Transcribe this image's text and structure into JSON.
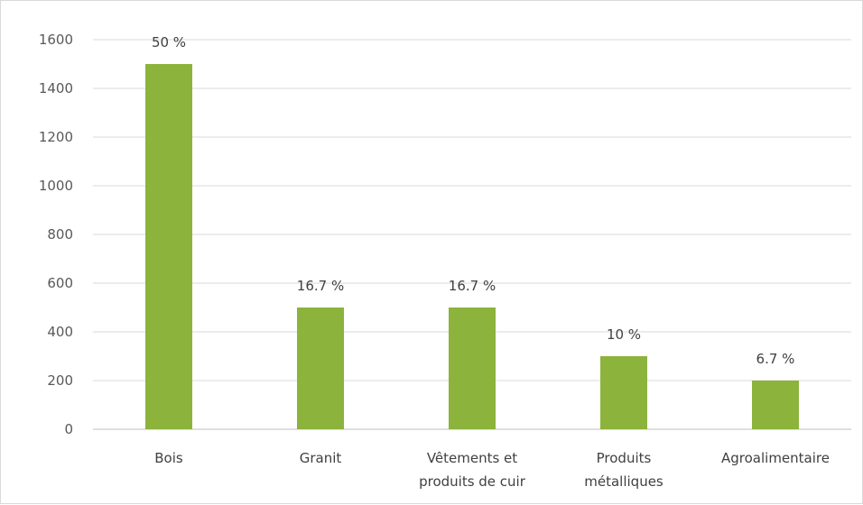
{
  "chart_data": {
    "type": "bar",
    "title": "",
    "xlabel": "",
    "ylabel": "",
    "ylim": [
      0,
      1600
    ],
    "yticks": [
      0,
      200,
      400,
      600,
      800,
      1000,
      1200,
      1400,
      1600
    ],
    "grid": true,
    "legend": "none",
    "bar_color": "#8cb33c",
    "categories": [
      [
        "Bois"
      ],
      [
        "Granit"
      ],
      [
        "Vêtements et",
        "produits de cuir"
      ],
      [
        "Produits",
        "métalliques"
      ],
      [
        "Agroalimentaire"
      ]
    ],
    "values": [
      1500,
      500,
      500,
      300,
      200
    ],
    "data_labels": [
      "50 %",
      "16.7 %",
      "16.7 %",
      "10 %",
      "6.7 %"
    ]
  }
}
